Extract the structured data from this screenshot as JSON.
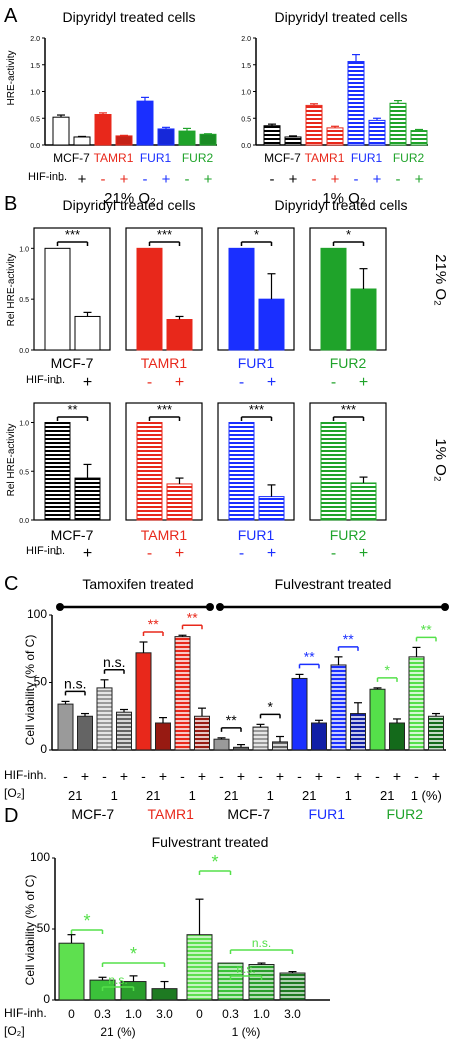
{
  "colors": {
    "black": "#000000",
    "red": "#e8281b",
    "blue": "#1a2fff",
    "green": "#1fa32a",
    "lightgreen": "#55e04a"
  },
  "panel_labels": [
    "A",
    "B",
    "C",
    "D"
  ],
  "panelA": {
    "charts": [
      {
        "title": "Dipyridyl treated cells",
        "style": "solid",
        "ylabel": "HRE-activity",
        "ylim": [
          0,
          2.0
        ],
        "yticks": [
          "0.0",
          "0.5",
          "1.0",
          "1.5",
          "2.0"
        ],
        "cells": [
          "MCF-7",
          "TAMR1",
          "FUR1",
          "FUR2"
        ],
        "values": [
          0.52,
          0.15,
          0.57,
          0.17,
          0.82,
          0.3,
          0.26,
          0.2
        ],
        "errors": [
          0.04,
          0.01,
          0.03,
          0.01,
          0.07,
          0.03,
          0.05,
          0.01
        ]
      },
      {
        "title": "Dipyridyl treated cells",
        "style": "striped",
        "ylabel": "",
        "ylim": [
          0,
          2.0
        ],
        "yticks": [
          "0.0",
          "0.5",
          "1.0",
          "1.5",
          "2.0"
        ],
        "cells": [
          "MCF-7",
          "TAMR1",
          "FUR1",
          "FUR2"
        ],
        "values": [
          0.36,
          0.15,
          0.74,
          0.32,
          1.56,
          0.46,
          0.78,
          0.27
        ],
        "errors": [
          0.03,
          0.02,
          0.03,
          0.03,
          0.13,
          0.04,
          0.05,
          0.02
        ]
      }
    ],
    "hif_label": "HIF-inh.",
    "signs": [
      "-",
      "+",
      "-",
      "+",
      "-",
      "+",
      "-",
      "+"
    ],
    "conditions": [
      "21% O₂",
      "1% O₂"
    ]
  },
  "panelB": {
    "titles": [
      "Dipyridyl treated cells",
      "Dipyridyl treated cells"
    ],
    "ylabel": "Rel HRE-activity",
    "yticks": [
      "0.0",
      "0.5",
      "1.0"
    ],
    "cells": [
      "MCF-7",
      "TAMR1",
      "FUR1",
      "FUR2"
    ],
    "row_labels": [
      "21% O₂",
      "1% O₂"
    ],
    "hif_label": "HIF-inh.",
    "signs": [
      "-",
      "+"
    ],
    "rows": [
      {
        "style": "solid",
        "values": [
          [
            1.0,
            0.33
          ],
          [
            1.0,
            0.3
          ],
          [
            1.0,
            0.5
          ],
          [
            1.0,
            0.6
          ]
        ],
        "errors": [
          [
            0,
            0.04
          ],
          [
            0,
            0.03
          ],
          [
            0,
            0.25
          ],
          [
            0,
            0.2
          ]
        ],
        "sig": [
          "***",
          "***",
          "*",
          "*"
        ]
      },
      {
        "style": "striped",
        "values": [
          [
            1.0,
            0.43
          ],
          [
            1.0,
            0.37
          ],
          [
            1.0,
            0.24
          ],
          [
            1.0,
            0.38
          ]
        ],
        "errors": [
          [
            0,
            0.14
          ],
          [
            0,
            0.06
          ],
          [
            0,
            0.12
          ],
          [
            0,
            0.06
          ]
        ],
        "sig": [
          "**",
          "***",
          "***",
          "***"
        ]
      }
    ]
  },
  "panelC": {
    "header_left": "Tamoxifen treated",
    "header_right": "Fulvestrant treated",
    "ylabel": "Cell viability (% of C)",
    "ylim": [
      0,
      100
    ],
    "yticks": [
      "0",
      "50",
      "100"
    ],
    "hif_label": "HIF-inh.",
    "o2_label": "[O₂]",
    "o2_values": [
      "21",
      "1",
      "21",
      "1",
      "21",
      "1",
      "21",
      "1",
      "21",
      "1 (%)"
    ],
    "cells": [
      "MCF-7",
      "TAMR1",
      "MCF-7",
      "FUR1",
      "FUR2"
    ],
    "values": [
      34,
      25,
      46,
      28,
      72,
      20,
      84,
      25,
      8,
      2,
      17,
      6,
      53,
      20,
      63,
      27,
      45,
      20,
      69,
      25
    ],
    "errors": [
      2,
      2,
      6,
      2,
      8,
      4,
      1,
      6,
      1,
      2,
      2,
      4,
      3,
      2,
      6,
      8,
      1,
      3,
      7,
      2
    ],
    "sig": [
      "n.s.",
      "n.s.",
      "**",
      "**",
      "**",
      "*",
      "**",
      "**",
      "*",
      "**"
    ]
  },
  "panelD": {
    "title": "Fulvestrant treated",
    "ylabel": "Cell viability (% of C)",
    "ylim": [
      0,
      100
    ],
    "yticks": [
      "0",
      "50",
      "100"
    ],
    "hif_label": "HIF-inh.",
    "doses": [
      "0",
      "0.3",
      "1.0",
      "3.0",
      "0",
      "0.3",
      "1.0",
      "3.0"
    ],
    "o2_label": "[O₂]",
    "o2_values": [
      "21 (%)",
      "1 (%)"
    ],
    "values": [
      40,
      14,
      13,
      8,
      46,
      26,
      25,
      19
    ],
    "errors": [
      6,
      2,
      4,
      5,
      25,
      0,
      1,
      1
    ],
    "sig": [
      "*",
      "*",
      "n.s.",
      "*",
      "n.s.",
      "n.s."
    ]
  }
}
